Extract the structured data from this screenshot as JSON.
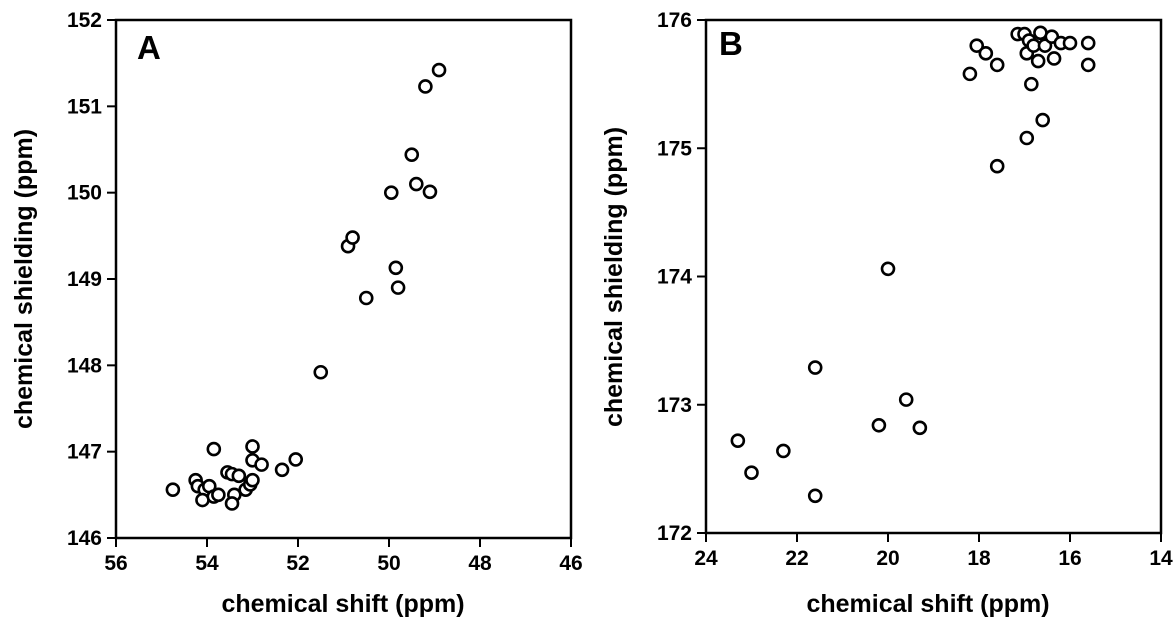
{
  "chart_data": [
    {
      "type": "scatter",
      "panel_label": "A",
      "xlabel": "chemical shift (ppm)",
      "ylabel": "chemical shielding (ppm)",
      "xlim": [
        56,
        46
      ],
      "ylim": [
        146,
        152
      ],
      "x_reversed": true,
      "xticks": [
        56,
        54,
        52,
        50,
        48,
        46
      ],
      "yticks": [
        146,
        147,
        148,
        149,
        150,
        151,
        152
      ],
      "grid": false,
      "marker": "open-circle",
      "points": [
        {
          "x": 54.75,
          "y": 146.56
        },
        {
          "x": 54.25,
          "y": 146.67
        },
        {
          "x": 54.2,
          "y": 146.6
        },
        {
          "x": 54.05,
          "y": 146.56
        },
        {
          "x": 54.1,
          "y": 146.44
        },
        {
          "x": 53.95,
          "y": 146.6
        },
        {
          "x": 53.85,
          "y": 146.48
        },
        {
          "x": 53.75,
          "y": 146.5
        },
        {
          "x": 53.85,
          "y": 147.03
        },
        {
          "x": 53.55,
          "y": 146.76
        },
        {
          "x": 53.45,
          "y": 146.74
        },
        {
          "x": 53.4,
          "y": 146.5
        },
        {
          "x": 53.45,
          "y": 146.4
        },
        {
          "x": 53.3,
          "y": 146.72
        },
        {
          "x": 53.15,
          "y": 146.56
        },
        {
          "x": 53.05,
          "y": 146.62
        },
        {
          "x": 53.0,
          "y": 146.67
        },
        {
          "x": 53.0,
          "y": 146.9
        },
        {
          "x": 53.0,
          "y": 147.06
        },
        {
          "x": 52.8,
          "y": 146.85
        },
        {
          "x": 52.35,
          "y": 146.79
        },
        {
          "x": 52.05,
          "y": 146.91
        },
        {
          "x": 51.5,
          "y": 147.92
        },
        {
          "x": 50.9,
          "y": 149.38
        },
        {
          "x": 50.8,
          "y": 149.48
        },
        {
          "x": 50.5,
          "y": 148.78
        },
        {
          "x": 49.95,
          "y": 150.0
        },
        {
          "x": 49.85,
          "y": 149.13
        },
        {
          "x": 49.8,
          "y": 148.9
        },
        {
          "x": 49.5,
          "y": 150.44
        },
        {
          "x": 49.4,
          "y": 150.1
        },
        {
          "x": 49.2,
          "y": 151.23
        },
        {
          "x": 49.1,
          "y": 150.01
        },
        {
          "x": 48.9,
          "y": 151.42
        }
      ]
    },
    {
      "type": "scatter",
      "panel_label": "B",
      "xlabel": "chemical shift (ppm)",
      "ylabel": "chemical shielding (ppm)",
      "xlim": [
        24,
        14
      ],
      "ylim": [
        172,
        176
      ],
      "x_reversed": true,
      "xticks": [
        24,
        22,
        20,
        18,
        16,
        14
      ],
      "yticks": [
        172,
        173,
        174,
        175,
        176
      ],
      "grid": false,
      "marker": "open-circle",
      "points": [
        {
          "x": 23.3,
          "y": 172.72
        },
        {
          "x": 23.0,
          "y": 172.47
        },
        {
          "x": 22.3,
          "y": 172.64
        },
        {
          "x": 21.6,
          "y": 173.29
        },
        {
          "x": 21.6,
          "y": 172.29
        },
        {
          "x": 20.2,
          "y": 172.84
        },
        {
          "x": 20.0,
          "y": 174.06
        },
        {
          "x": 19.6,
          "y": 173.04
        },
        {
          "x": 19.3,
          "y": 172.82
        },
        {
          "x": 18.2,
          "y": 175.58
        },
        {
          "x": 18.05,
          "y": 175.8
        },
        {
          "x": 17.85,
          "y": 175.74
        },
        {
          "x": 17.6,
          "y": 175.65
        },
        {
          "x": 17.6,
          "y": 174.86
        },
        {
          "x": 17.15,
          "y": 175.89
        },
        {
          "x": 17.0,
          "y": 175.89
        },
        {
          "x": 16.95,
          "y": 175.74
        },
        {
          "x": 16.9,
          "y": 175.84
        },
        {
          "x": 16.85,
          "y": 175.5
        },
        {
          "x": 16.8,
          "y": 175.8
        },
        {
          "x": 16.7,
          "y": 175.68
        },
        {
          "x": 16.65,
          "y": 175.9
        },
        {
          "x": 16.95,
          "y": 175.08
        },
        {
          "x": 16.6,
          "y": 175.22
        },
        {
          "x": 16.55,
          "y": 175.8
        },
        {
          "x": 16.4,
          "y": 175.87
        },
        {
          "x": 16.35,
          "y": 175.7
        },
        {
          "x": 16.2,
          "y": 175.82
        },
        {
          "x": 16.0,
          "y": 175.82
        },
        {
          "x": 15.6,
          "y": 175.82
        },
        {
          "x": 15.6,
          "y": 175.65
        }
      ]
    }
  ]
}
